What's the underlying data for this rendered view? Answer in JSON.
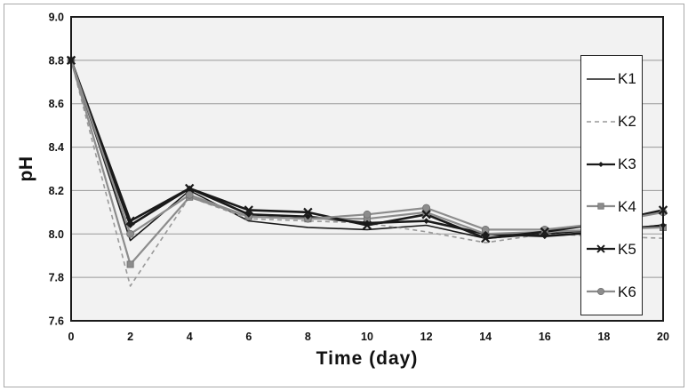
{
  "chart_data": {
    "type": "line",
    "title": "",
    "xlabel": "Time (day)",
    "ylabel": "pH",
    "ylim": [
      7.6,
      9.0
    ],
    "xlim": [
      0,
      20
    ],
    "ytick_labels": [
      "9.0",
      "8.8",
      "8.6",
      "8.4",
      "8.2",
      "8.0",
      "7.8",
      "7.6"
    ],
    "xtick_labels": [
      "0",
      "2",
      "4",
      "6",
      "8",
      "10",
      "12",
      "14",
      "16",
      "18",
      "20"
    ],
    "grid": "horizontal",
    "legend_position": "right-overlay",
    "x": [
      0,
      2,
      4,
      6,
      8,
      10,
      12,
      14,
      16,
      18,
      20
    ],
    "series": [
      {
        "name": "K1",
        "color": "#1a1a1a",
        "width": 1.6,
        "dash": "",
        "marker": "none",
        "values": [
          8.8,
          7.97,
          8.2,
          8.06,
          8.03,
          8.02,
          8.04,
          7.98,
          8.0,
          8.02,
          8.04
        ]
      },
      {
        "name": "K2",
        "color": "#999999",
        "width": 1.6,
        "dash": "5,4",
        "marker": "none",
        "values": [
          8.8,
          7.76,
          8.17,
          8.07,
          8.06,
          8.05,
          8.01,
          7.96,
          8.0,
          7.99,
          7.98
        ]
      },
      {
        "name": "K3",
        "color": "#1a1a1a",
        "width": 2.6,
        "dash": "",
        "marker": "diamond",
        "values": [
          8.8,
          8.04,
          8.21,
          8.09,
          8.08,
          8.05,
          8.06,
          8.0,
          7.99,
          8.01,
          8.04
        ]
      },
      {
        "name": "K4",
        "color": "#8c8c8c",
        "width": 2.2,
        "dash": "",
        "marker": "square",
        "values": [
          8.8,
          7.86,
          8.17,
          8.08,
          8.07,
          8.07,
          8.1,
          8.0,
          8.01,
          8.02,
          8.03
        ]
      },
      {
        "name": "K5",
        "color": "#1a1a1a",
        "width": 2.6,
        "dash": "",
        "marker": "x",
        "values": [
          8.8,
          8.06,
          8.21,
          8.11,
          8.1,
          8.04,
          8.09,
          7.98,
          8.01,
          8.05,
          8.11
        ]
      },
      {
        "name": "K6",
        "color": "#8c8c8c",
        "width": 2.2,
        "dash": "",
        "marker": "circle",
        "values": [
          8.8,
          8.0,
          8.18,
          8.08,
          8.07,
          8.09,
          8.12,
          8.02,
          8.02,
          8.05,
          8.1
        ]
      }
    ],
    "marker_draw_order": [
      "K4",
      "K6",
      "K3",
      "K5"
    ],
    "colors": {
      "plot_bg": "#f2f2f2",
      "gridline": "#999999",
      "axis_border": "#1a1a1a",
      "frame_border": "#a9a9a9",
      "text": "#111111"
    }
  }
}
